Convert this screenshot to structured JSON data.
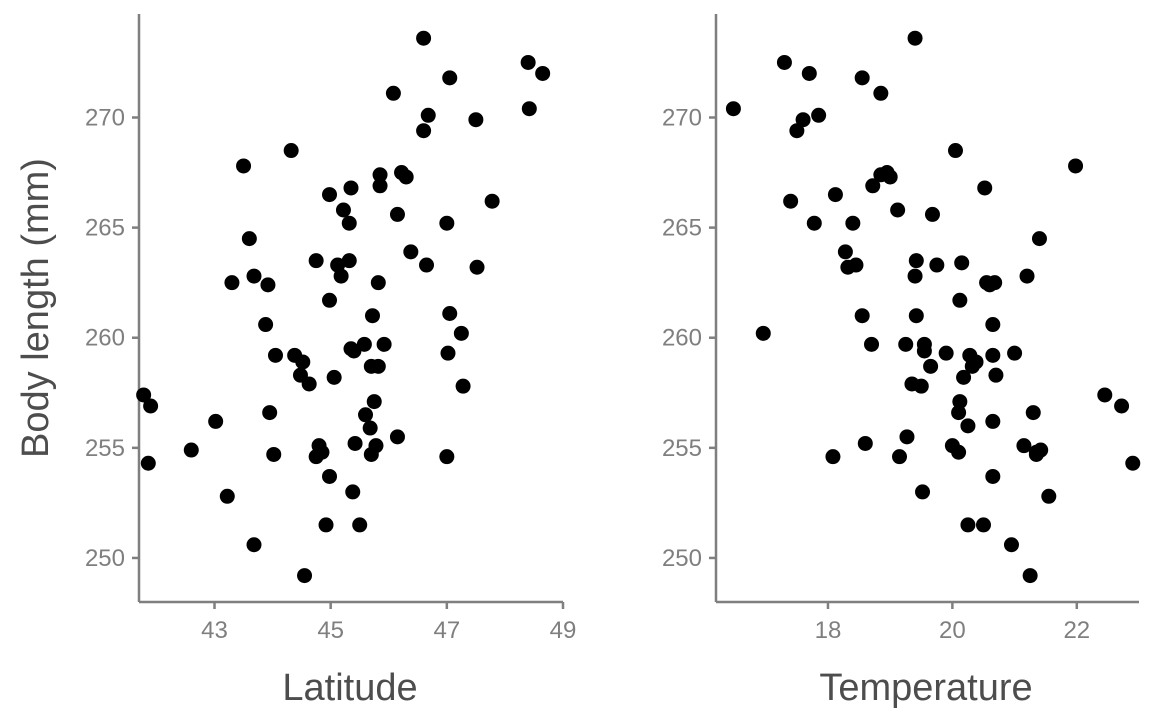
{
  "ylabel": "Body length (mm)",
  "point_color": "#000000",
  "axis_color": "#7f7f7f",
  "chart_data": [
    {
      "type": "scatter",
      "title": "",
      "xlabel": "Latitude",
      "ylabel": "Body length (mm)",
      "xlim": [
        41.7,
        49.0
      ],
      "ylim": [
        248.0,
        274.7
      ],
      "xticks": [
        43,
        45,
        47,
        49
      ],
      "yticks": [
        250,
        255,
        260,
        265,
        270
      ],
      "grid": false,
      "legend": "none",
      "series": [
        {
          "x": [
            46.6,
            48.4,
            48.65,
            47.05,
            46.08,
            48.42,
            47.5,
            46.68,
            46.6,
            44.32,
            43.5,
            45.85,
            46.22,
            46.3,
            45.35,
            45.85,
            44.98,
            47.78,
            46.15,
            45.22,
            45.32,
            47.0,
            43.6,
            46.38,
            44.75,
            45.32,
            45.12,
            47.52,
            46.65,
            45.18,
            43.68,
            43.3,
            45.82,
            43.92,
            44.98,
            47.05,
            45.72,
            43.88,
            47.25,
            45.58,
            45.92,
            45.35,
            45.4,
            47.02,
            44.05,
            44.38,
            44.52,
            45.7,
            45.82,
            44.48,
            45.06,
            44.63,
            41.78,
            47.28,
            41.9,
            45.75,
            43.95,
            45.6,
            45.68,
            43.02,
            46.15,
            45.78,
            44.8,
            45.42,
            42.6,
            44.85,
            44.02,
            45.7,
            44.75,
            47.0,
            41.86,
            44.98,
            45.38,
            43.22,
            44.92,
            45.5,
            43.68,
            44.55
          ],
          "y": [
            273.6,
            272.5,
            272.0,
            271.8,
            271.1,
            270.4,
            269.9,
            270.1,
            269.4,
            268.5,
            267.8,
            267.4,
            267.5,
            267.3,
            266.8,
            266.9,
            266.5,
            266.2,
            265.6,
            265.8,
            265.2,
            265.2,
            264.5,
            263.9,
            263.5,
            263.5,
            263.3,
            263.2,
            263.3,
            262.8,
            262.8,
            262.5,
            262.5,
            262.4,
            261.7,
            261.1,
            261.0,
            260.6,
            260.2,
            259.7,
            259.7,
            259.5,
            259.4,
            259.3,
            259.2,
            259.2,
            258.9,
            258.7,
            258.7,
            258.3,
            258.2,
            257.9,
            257.4,
            257.8,
            256.9,
            257.1,
            256.6,
            256.5,
            255.9,
            256.2,
            255.5,
            255.1,
            255.1,
            255.2,
            254.9,
            254.8,
            254.7,
            254.7,
            254.6,
            254.6,
            254.3,
            253.7,
            253.0,
            252.8,
            251.5,
            251.5,
            250.6,
            249.2
          ]
        }
      ]
    },
    {
      "type": "scatter",
      "title": "",
      "xlabel": "Temperature",
      "ylabel": "Body length (mm)",
      "xlim": [
        16.2,
        23.0
      ],
      "ylim": [
        248.0,
        274.7
      ],
      "xticks": [
        18,
        20,
        22
      ],
      "yticks": [
        250,
        255,
        260,
        265,
        270
      ],
      "grid": false,
      "legend": "none",
      "series": [
        {
          "x": [
            19.4,
            17.3,
            17.7,
            18.55,
            18.85,
            16.48,
            17.6,
            17.85,
            17.5,
            20.05,
            21.98,
            18.95,
            19.0,
            18.85,
            18.72,
            20.52,
            18.12,
            17.4,
            19.68,
            19.12,
            17.78,
            18.4,
            21.4,
            18.28,
            19.42,
            20.15,
            18.32,
            18.45,
            19.75,
            19.4,
            20.55,
            20.68,
            20.6,
            21.2,
            20.12,
            19.42,
            18.55,
            20.65,
            16.96,
            19.25,
            19.55,
            18.7,
            19.9,
            19.55,
            20.28,
            20.38,
            20.18,
            20.65,
            21.0,
            20.32,
            19.65,
            20.7,
            22.45,
            19.35,
            22.72,
            19.5,
            20.12,
            20.1,
            21.3,
            20.65,
            20.25,
            19.27,
            20.1,
            18.6,
            21.15,
            20.0,
            21.42,
            21.35,
            21.35,
            19.15,
            18.08,
            22.9,
            20.65,
            19.52,
            21.55,
            20.25,
            20.5,
            20.95,
            21.25
          ],
          "y": [
            273.6,
            272.5,
            272.0,
            271.8,
            271.1,
            270.4,
            269.9,
            270.1,
            269.4,
            268.5,
            267.8,
            267.5,
            267.3,
            267.4,
            266.9,
            266.8,
            266.5,
            266.2,
            265.6,
            265.8,
            265.2,
            265.2,
            264.5,
            263.9,
            263.5,
            263.4,
            263.2,
            263.3,
            263.3,
            262.8,
            262.5,
            262.5,
            262.4,
            262.8,
            261.7,
            261.0,
            261.0,
            260.6,
            260.2,
            259.7,
            259.7,
            259.7,
            259.3,
            259.4,
            259.2,
            258.9,
            258.2,
            259.2,
            259.3,
            258.7,
            258.7,
            258.3,
            257.4,
            257.9,
            256.9,
            257.8,
            257.1,
            256.6,
            256.6,
            256.2,
            256.0,
            255.5,
            254.8,
            255.2,
            255.1,
            255.1,
            254.9,
            254.7,
            254.8,
            254.6,
            254.6,
            254.3,
            253.7,
            253.0,
            252.8,
            251.5,
            251.5,
            250.6,
            249.2
          ]
        }
      ]
    }
  ]
}
